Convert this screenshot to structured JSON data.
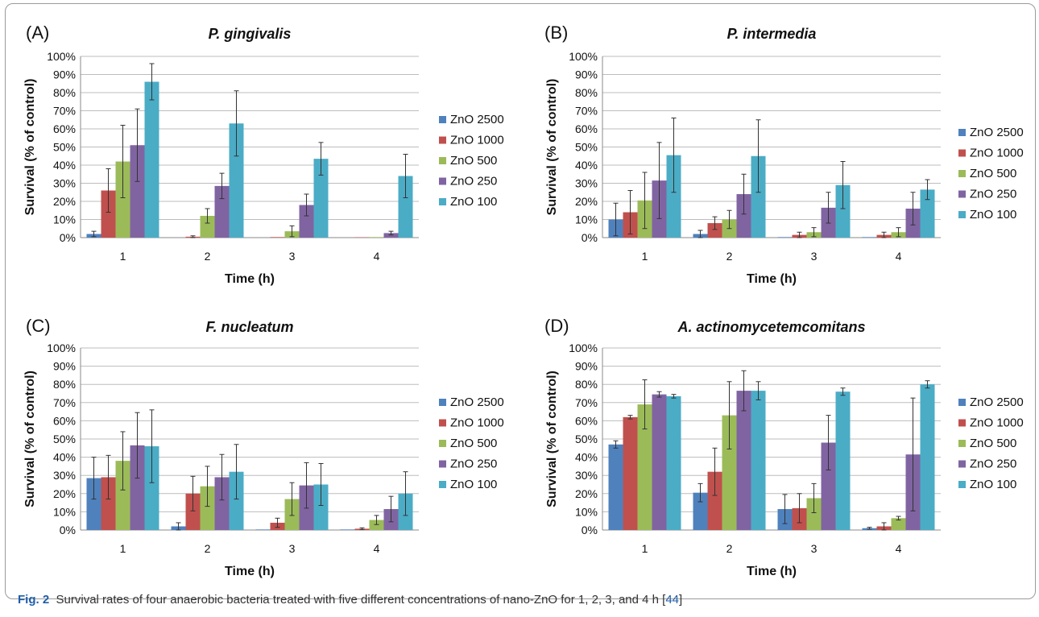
{
  "caption": {
    "label": "Fig. 2",
    "text": "Survival rates of four anaerobic bacteria treated with five different concentrations of nano-ZnO for 1, 2, 3, and 4 h [",
    "ref": "44",
    "close": "]"
  },
  "colors": {
    "ZnO 2500": "#4f81bd",
    "ZnO 1000": "#c0504d",
    "ZnO 500": "#9bbb59",
    "ZnO 250": "#8064a2",
    "ZnO 100": "#4bacc6"
  },
  "chart_data": [
    {
      "panel": "(A)",
      "type": "bar",
      "title": "P. gingivalis",
      "xlabel": "Time (h)",
      "ylabel": "Survival (% of control)",
      "ylim": [
        0,
        100
      ],
      "ytick_labels": [
        "0%",
        "10%",
        "20%",
        "30%",
        "40%",
        "50%",
        "60%",
        "70%",
        "80%",
        "90%",
        "100%"
      ],
      "categories": [
        "1",
        "2",
        "3",
        "4"
      ],
      "grid": true,
      "legend": "right",
      "series": [
        {
          "name": "ZnO 2500",
          "values": [
            2,
            0,
            0,
            0
          ],
          "errors": [
            1.5,
            0,
            0,
            0
          ]
        },
        {
          "name": "ZnO 1000",
          "values": [
            26,
            0.5,
            0.3,
            0.2
          ],
          "errors": [
            12,
            0.5,
            0.3,
            0.2
          ]
        },
        {
          "name": "ZnO 500",
          "values": [
            42,
            12,
            3.5,
            0.3
          ],
          "errors": [
            20,
            4,
            3,
            0.3
          ]
        },
        {
          "name": "ZnO 250",
          "values": [
            51,
            28.5,
            18,
            2.5
          ],
          "errors": [
            20,
            7,
            6,
            1
          ]
        },
        {
          "name": "ZnO 100",
          "values": [
            86,
            63,
            43.5,
            34
          ],
          "errors": [
            10,
            18,
            9,
            12
          ]
        }
      ]
    },
    {
      "panel": "(B)",
      "type": "bar",
      "title": "P. intermedia",
      "xlabel": "Time (h)",
      "ylabel": "Survival (% of control)",
      "ylim": [
        0,
        100
      ],
      "ytick_labels": [
        "0%",
        "10%",
        "20%",
        "30%",
        "40%",
        "50%",
        "60%",
        "70%",
        "80%",
        "90%",
        "100%"
      ],
      "categories": [
        "1",
        "2",
        "3",
        "4"
      ],
      "grid": true,
      "legend": "right",
      "series": [
        {
          "name": "ZnO 2500",
          "values": [
            10,
            2,
            0.3,
            0.3
          ],
          "errors": [
            9,
            2,
            0.3,
            0.3
          ]
        },
        {
          "name": "ZnO 1000",
          "values": [
            14,
            8,
            1.5,
            1.5
          ],
          "errors": [
            12,
            3.5,
            1.5,
            1.5
          ]
        },
        {
          "name": "ZnO 500",
          "values": [
            20.5,
            10,
            3,
            3
          ],
          "errors": [
            15.5,
            5,
            2.5,
            2.5
          ]
        },
        {
          "name": "ZnO 250",
          "values": [
            31.5,
            24,
            16.5,
            16
          ],
          "errors": [
            21,
            11,
            8.5,
            9
          ]
        },
        {
          "name": "ZnO 100",
          "values": [
            45.5,
            45,
            29,
            26.5
          ],
          "errors": [
            20.5,
            20,
            13,
            5.5
          ]
        }
      ]
    },
    {
      "panel": "(C)",
      "type": "bar",
      "title": "F. nucleatum",
      "xlabel": "Time (h)",
      "ylabel": "Survival (% of control)",
      "ylim": [
        0,
        100
      ],
      "ytick_labels": [
        "0%",
        "10%",
        "20%",
        "30%",
        "40%",
        "50%",
        "60%",
        "70%",
        "80%",
        "90%",
        "100%"
      ],
      "categories": [
        "1",
        "2",
        "3",
        "4"
      ],
      "grid": true,
      "legend": "right",
      "series": [
        {
          "name": "ZnO 2500",
          "values": [
            28.5,
            2,
            0.3,
            0.3
          ],
          "errors": [
            11.5,
            2,
            0.3,
            0.3
          ]
        },
        {
          "name": "ZnO 1000",
          "values": [
            29,
            20,
            4,
            0.7
          ],
          "errors": [
            12,
            9.5,
            2.5,
            0.5
          ]
        },
        {
          "name": "ZnO 500",
          "values": [
            38,
            24,
            17,
            5.5
          ],
          "errors": [
            16,
            11,
            9,
            2.5
          ]
        },
        {
          "name": "ZnO 250",
          "values": [
            46.5,
            29,
            24.5,
            11.5
          ],
          "errors": [
            18,
            12.5,
            12.5,
            7
          ]
        },
        {
          "name": "ZnO 100",
          "values": [
            46,
            32,
            25,
            20
          ],
          "errors": [
            20,
            15,
            11.5,
            12
          ]
        }
      ]
    },
    {
      "panel": "(D)",
      "type": "bar",
      "title": "A. actinomycetemcomitans",
      "xlabel": "Time (h)",
      "ylabel": "Survival (% of control)",
      "ylim": [
        0,
        100
      ],
      "ytick_labels": [
        "0%",
        "10%",
        "20%",
        "30%",
        "40%",
        "50%",
        "60%",
        "70%",
        "80%",
        "90%",
        "100%"
      ],
      "categories": [
        "1",
        "2",
        "3",
        "4"
      ],
      "grid": true,
      "legend": "right",
      "series": [
        {
          "name": "ZnO 2500",
          "values": [
            47,
            20.5,
            11.5,
            1
          ],
          "errors": [
            2,
            5,
            8,
            0.5
          ]
        },
        {
          "name": "ZnO 1000",
          "values": [
            62,
            32,
            12,
            2
          ],
          "errors": [
            1,
            13,
            8,
            2
          ]
        },
        {
          "name": "ZnO 500",
          "values": [
            69,
            63,
            17.5,
            6.5
          ],
          "errors": [
            13.5,
            18.5,
            8,
            1
          ]
        },
        {
          "name": "ZnO 250",
          "values": [
            74.5,
            76.5,
            48,
            41.5
          ],
          "errors": [
            1.5,
            11,
            15,
            31
          ]
        },
        {
          "name": "ZnO 100",
          "values": [
            73.5,
            76.5,
            76,
            80
          ],
          "errors": [
            1,
            5,
            2,
            2
          ]
        }
      ]
    }
  ]
}
